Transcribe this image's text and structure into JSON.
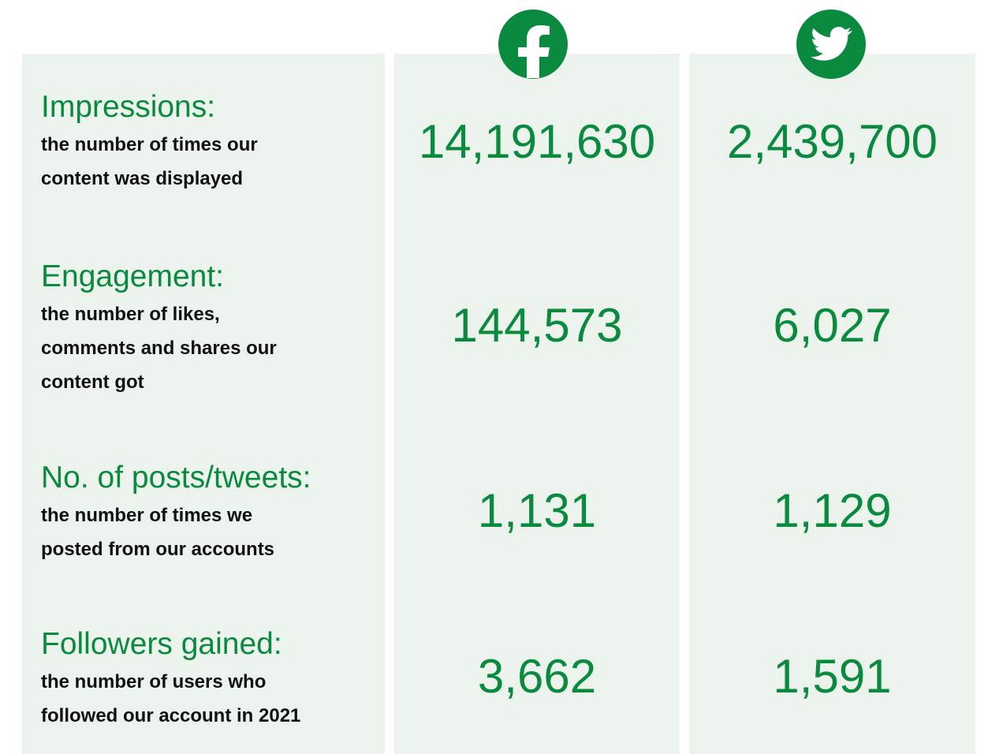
{
  "columns": [
    "Facebook",
    "Twitter"
  ],
  "rows": [
    {
      "label": "Impressions:",
      "description": [
        "the number of times our",
        "content was displayed"
      ],
      "facebook": "14,191,630",
      "twitter": "2,439,700"
    },
    {
      "label": "Engagement:",
      "description": [
        "the number of likes,",
        "comments and shares our",
        "content got"
      ],
      "facebook": "144,573",
      "twitter": "6,027"
    },
    {
      "label": "No. of posts/tweets:",
      "description": [
        "the number of times we",
        "posted from our accounts"
      ],
      "facebook": "1,131",
      "twitter": "1,129"
    },
    {
      "label": "Followers gained:",
      "description": [
        "the number of users who",
        "followed our account in 2021"
      ],
      "facebook": "3,662",
      "twitter": "1,591"
    }
  ]
}
